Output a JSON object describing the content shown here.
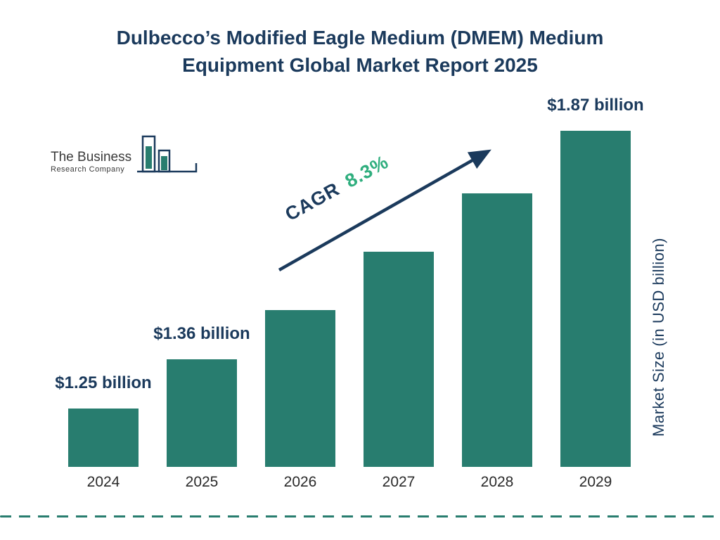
{
  "title": "Dulbecco’s Modified Eagle Medium (DMEM) Medium Equipment Global Market Report 2025",
  "logo": {
    "line1": "The Business",
    "line2": "Research Company"
  },
  "annotation": {
    "cagr_label": "CAGR",
    "cagr_value": "8.3%"
  },
  "colors": {
    "navy": "#1b3a5c",
    "teal": "#287d6f",
    "green": "#2fae7e"
  },
  "chart_data": {
    "type": "bar",
    "title": "Dulbecco’s Modified Eagle Medium (DMEM) Medium Equipment Global Market Report 2025",
    "categories": [
      "2024",
      "2025",
      "2026",
      "2027",
      "2028",
      "2029"
    ],
    "values": [
      1.25,
      1.36,
      1.47,
      1.6,
      1.73,
      1.87
    ],
    "bar_labels": [
      "$1.25 billion",
      "$1.36 billion",
      null,
      null,
      null,
      "$1.87 billion"
    ],
    "cagr": "8.3%",
    "xlabel": "",
    "ylabel": "Market Size (in USD billion)",
    "axis_min": 1.12,
    "axis_max": 1.87,
    "grid": false,
    "legend": false,
    "bar_color": "#287d6f"
  }
}
